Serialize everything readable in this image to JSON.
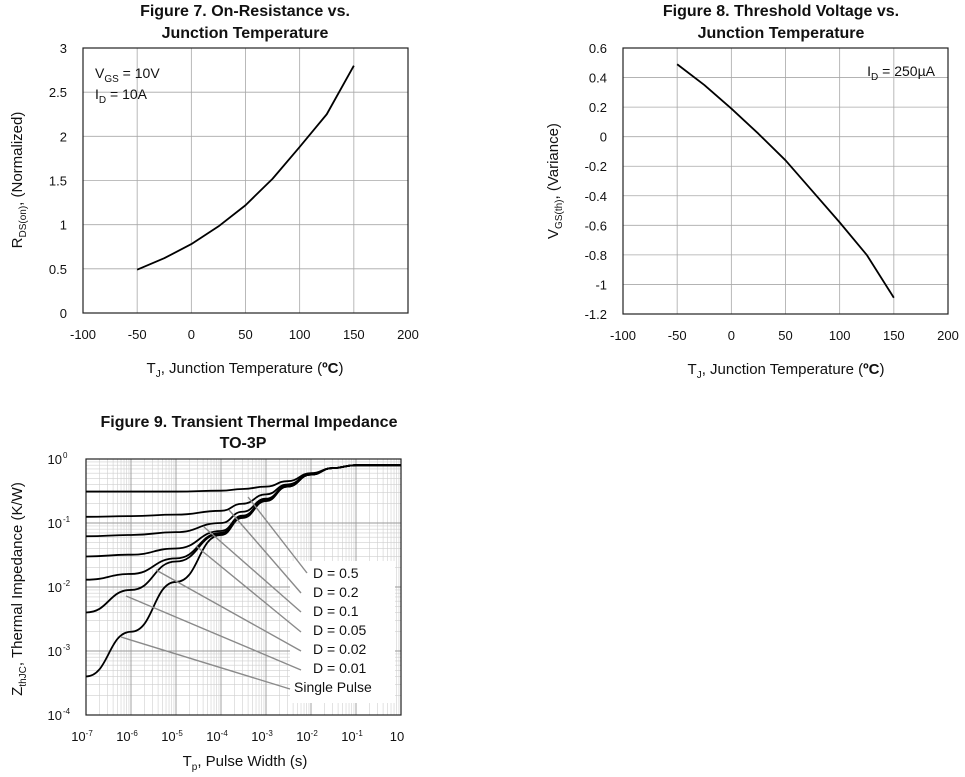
{
  "chart_data": [
    {
      "type": "line",
      "title_lines": [
        "Figure 7. On-Resistance vs.",
        "Junction Temperature"
      ],
      "xlabel": {
        "main": "T",
        "sub": "J",
        "rest": ", Junction Temperature (",
        "unit": "ºC",
        "close": ")"
      },
      "ylabel": {
        "main": "R",
        "sub": "DS(on)",
        "rest": ", (Normalized)"
      },
      "xlim": [
        -100,
        200
      ],
      "ylim": [
        0,
        3
      ],
      "x_ticks": [
        "-100",
        "-50",
        "0",
        "50",
        "100",
        "150",
        "200"
      ],
      "y_ticks": [
        "0",
        "0.5",
        "1",
        "1.5",
        "2",
        "2.5",
        "3"
      ],
      "annotation_lines": [
        {
          "main": "V",
          "sub": "GS",
          "rest": " = 10V"
        },
        {
          "main": "I",
          "sub": "D",
          "rest": " = 10A"
        }
      ],
      "grid": true,
      "series": [
        {
          "x": [
            -50,
            -25,
            0,
            25,
            50,
            75,
            100,
            125,
            150
          ],
          "y": [
            0.49,
            0.62,
            0.78,
            0.98,
            1.22,
            1.52,
            1.88,
            2.25,
            2.8
          ]
        }
      ]
    },
    {
      "type": "line",
      "title_lines": [
        "Figure 8. Threshold Voltage vs.",
        "Junction Temperature"
      ],
      "xlabel": {
        "main": "T",
        "sub": "J",
        "rest": ", Junction Temperature (",
        "unit": "ºC",
        "close": ")"
      },
      "ylabel": {
        "main": "V",
        "sub": "GS(th)",
        "rest": ", (Variance)"
      },
      "xlim": [
        -100,
        200
      ],
      "ylim": [
        -1.2,
        0.6
      ],
      "x_ticks": [
        "-100",
        "-50",
        "0",
        "50",
        "100",
        "150",
        "200"
      ],
      "y_ticks": [
        "-1.2",
        "-1",
        "-0.8",
        "-0.6",
        "-0.4",
        "-0.2",
        "0",
        "0.2",
        "0.4",
        "0.6"
      ],
      "annotation_lines": [
        {
          "main": "I",
          "sub": "D",
          "rest": " = 250µA"
        }
      ],
      "grid": true,
      "series": [
        {
          "x": [
            -50,
            -25,
            0,
            25,
            50,
            75,
            100,
            125,
            150
          ],
          "y": [
            0.49,
            0.35,
            0.19,
            0.02,
            -0.16,
            -0.37,
            -0.58,
            -0.8,
            -1.09
          ]
        }
      ]
    },
    {
      "type": "line",
      "title_lines": [
        "Figure 9. Transient Thermal Impedance",
        "TO-3P"
      ],
      "xlabel": {
        "main": "T",
        "sub": "p",
        "rest": ", Pulse Width (s)"
      },
      "ylabel": {
        "main": "Z",
        "sub": "thJC",
        "rest": ", Thermal Impedance (K/W)"
      },
      "x_log": true,
      "y_log": true,
      "xlim": [
        1e-07,
        1
      ],
      "ylim": [
        0.0001,
        1
      ],
      "x_ticks": [
        "10-7",
        "10-6",
        "10-5",
        "10-4",
        "10-3",
        "10-2",
        "10-1",
        "10"
      ],
      "x_tick_exps": [
        "-7",
        "-6",
        "-5",
        "-4",
        "-3",
        "-2",
        "-1",
        "0"
      ],
      "y_ticks": [
        "10",
        "10",
        "10",
        "10",
        "10"
      ],
      "y_tick_exps": [
        "-4",
        "-3",
        "-2",
        "-1",
        "0"
      ],
      "grid": true,
      "legend_labels": [
        "D = 0.5",
        "D = 0.2",
        "D = 0.1",
        "D = 0.05",
        "D = 0.02",
        "D = 0.01",
        "Single Pulse"
      ],
      "series": [
        {
          "name": "D = 0.5",
          "x": [
            1e-07,
            1e-06,
            1e-05,
            0.0001,
            0.0003,
            0.001,
            0.003,
            0.01,
            0.03,
            0.1,
            1
          ],
          "y": [
            0.31,
            0.31,
            0.31,
            0.32,
            0.34,
            0.37,
            0.45,
            0.6,
            0.72,
            0.8,
            0.8
          ]
        },
        {
          "name": "D = 0.2",
          "x": [
            1e-07,
            1e-06,
            1e-05,
            0.0001,
            0.0003,
            0.001,
            0.003,
            0.01,
            0.03,
            0.1,
            1
          ],
          "y": [
            0.125,
            0.128,
            0.135,
            0.155,
            0.2,
            0.28,
            0.4,
            0.58,
            0.72,
            0.8,
            0.8
          ]
        },
        {
          "name": "D = 0.1",
          "x": [
            1e-07,
            1e-06,
            1e-05,
            0.0001,
            0.0003,
            0.001,
            0.003,
            0.01,
            0.03,
            0.1,
            1
          ],
          "y": [
            0.062,
            0.065,
            0.072,
            0.1,
            0.15,
            0.24,
            0.38,
            0.57,
            0.72,
            0.8,
            0.8
          ]
        },
        {
          "name": "D = 0.05",
          "x": [
            1e-07,
            1e-06,
            1e-05,
            0.0001,
            0.0003,
            0.001,
            0.003,
            0.01,
            0.03,
            0.1,
            1
          ],
          "y": [
            0.03,
            0.032,
            0.04,
            0.075,
            0.13,
            0.23,
            0.38,
            0.57,
            0.72,
            0.8,
            0.8
          ]
        },
        {
          "name": "D = 0.02",
          "x": [
            1e-07,
            1e-06,
            1e-05,
            0.0001,
            0.0003,
            0.001,
            0.003,
            0.01,
            0.03,
            0.1,
            1
          ],
          "y": [
            0.013,
            0.016,
            0.028,
            0.07,
            0.125,
            0.23,
            0.37,
            0.57,
            0.72,
            0.8,
            0.8
          ]
        },
        {
          "name": "D = 0.01",
          "x": [
            1e-07,
            1e-06,
            1e-05,
            0.0001,
            0.0003,
            0.001,
            0.003,
            0.01,
            0.03,
            0.1,
            1
          ],
          "y": [
            0.004,
            0.009,
            0.025,
            0.068,
            0.123,
            0.225,
            0.37,
            0.57,
            0.72,
            0.8,
            0.8
          ]
        },
        {
          "name": "Single Pulse",
          "x": [
            1e-07,
            1e-06,
            1e-05,
            0.0001,
            0.0003,
            0.001,
            0.003,
            0.01,
            0.03,
            0.1,
            1
          ],
          "y": [
            0.0004,
            0.002,
            0.012,
            0.065,
            0.12,
            0.22,
            0.37,
            0.57,
            0.72,
            0.8,
            0.8
          ]
        }
      ]
    }
  ]
}
